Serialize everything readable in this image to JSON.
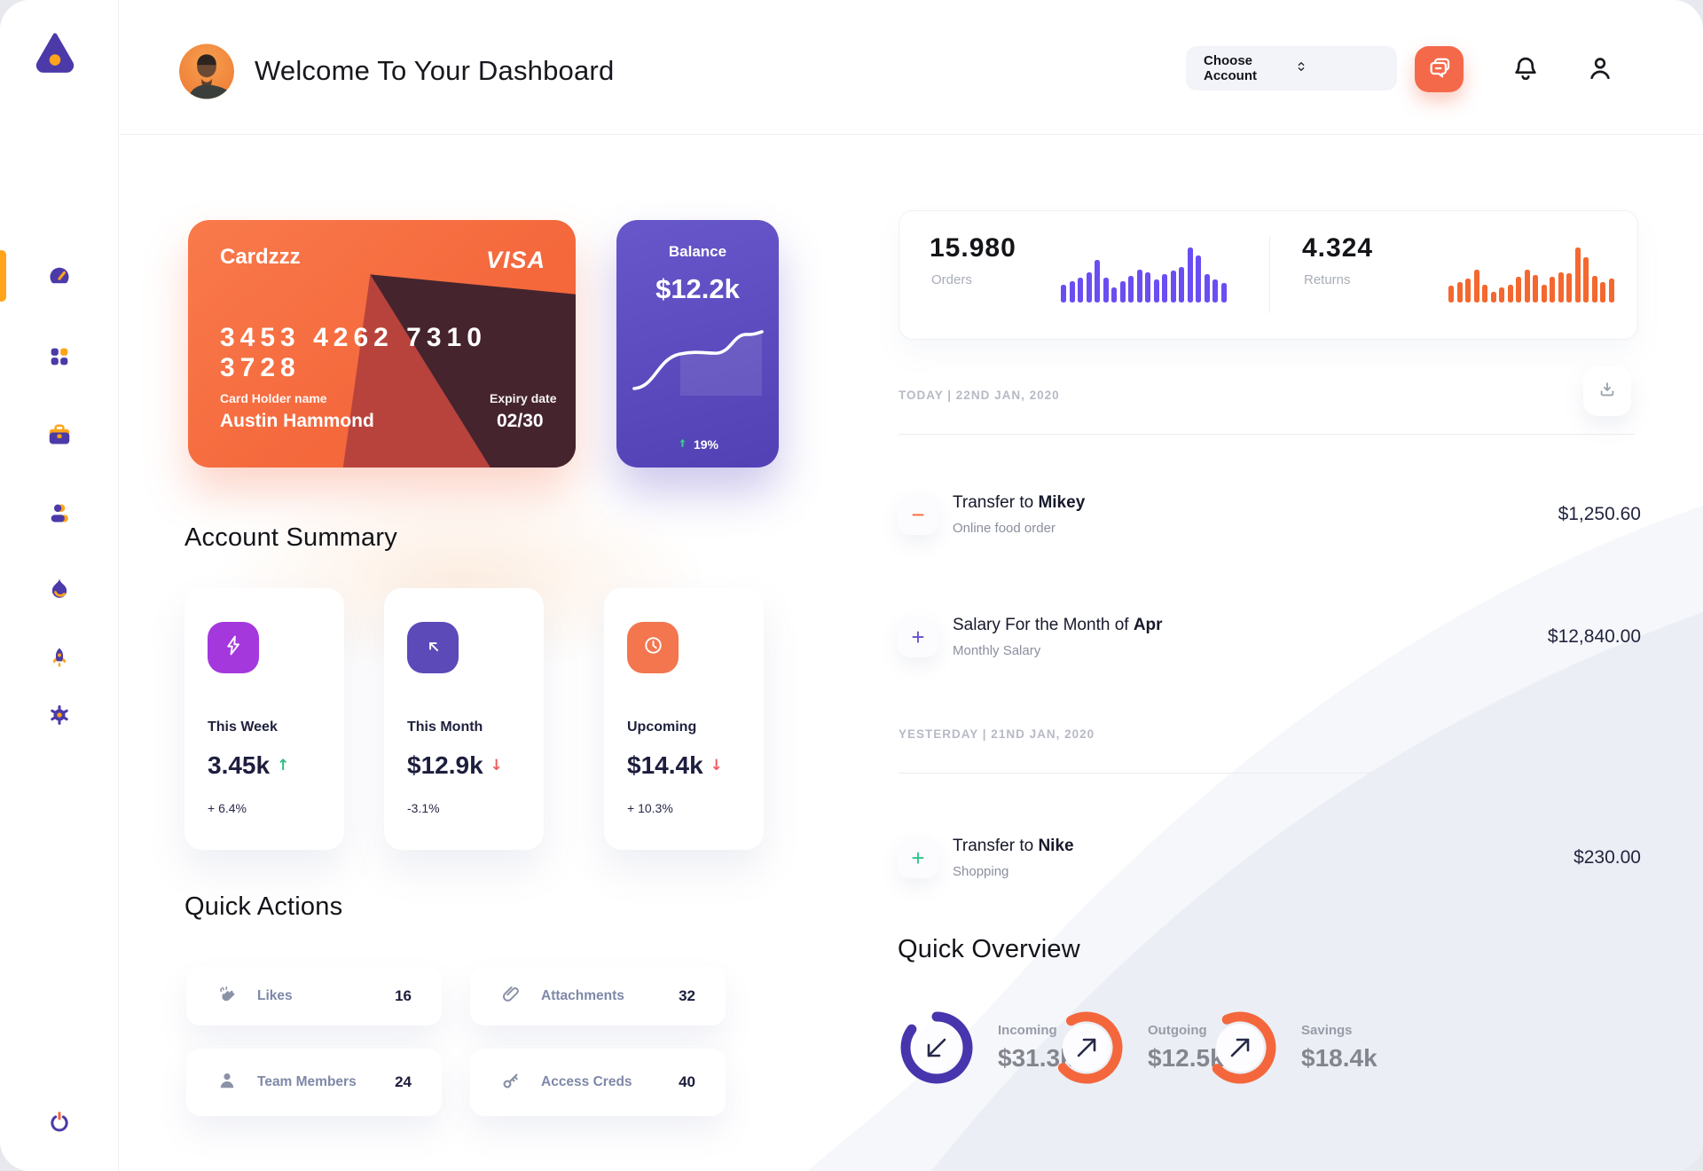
{
  "header": {
    "title": "Welcome To Your Dashboard",
    "account_dropdown": {
      "label": "Choose Account"
    },
    "icons": {
      "chat": "chat-bubbles-icon",
      "notifications": "bell-icon",
      "profile": "user-icon"
    }
  },
  "sidebar": {
    "logo": "triangle-dot-logo",
    "items": [
      {
        "id": "dashboard",
        "icon": "speedometer-icon",
        "active": true
      },
      {
        "id": "apps",
        "icon": "grid-icon",
        "active": false
      },
      {
        "id": "projects",
        "icon": "briefcase-icon",
        "active": false
      },
      {
        "id": "contacts",
        "icon": "user-icon",
        "active": false
      },
      {
        "id": "activity",
        "icon": "flame-icon",
        "active": false
      },
      {
        "id": "boost",
        "icon": "rocket-icon",
        "active": false
      },
      {
        "id": "settings",
        "icon": "gear-icon",
        "active": false
      }
    ],
    "logout_icon": "power-icon"
  },
  "credit_card": {
    "name": "Cardzzz",
    "brand": "VISA",
    "number": "3453 4262 7310 3728",
    "holder_label": "Card Holder name",
    "holder": "Austin Hammond",
    "expiry_label": "Expiry date",
    "expiry": "02/30"
  },
  "balance_card": {
    "label": "Balance",
    "value": "$12.2k",
    "change": "19%",
    "trend": "up",
    "trend_color": "#35d08e"
  },
  "account_summary": {
    "title": "Account Summary",
    "cards": [
      {
        "label": "This Week",
        "value": "3.45k",
        "trend": "↑",
        "trend_color": "#2fbe81",
        "delta": "+ 6.4%",
        "icon": "lightning-icon",
        "icon_bg": "#a438dd"
      },
      {
        "label": "This Month",
        "value": "$12.9k",
        "trend": "↓",
        "trend_color": "#ef5d5d",
        "delta": "-3.1%",
        "icon": "arrow-up-left-icon",
        "icon_bg": "#5b4ab8"
      },
      {
        "label": "Upcoming",
        "value": "$14.4k",
        "trend": "↓",
        "trend_color": "#ef5d5d",
        "delta": "+ 10.3%",
        "icon": "clock-icon",
        "icon_bg": "#f3764f"
      }
    ]
  },
  "quick_actions": {
    "title": "Quick Actions",
    "items": [
      {
        "label": "Likes",
        "count": "16",
        "icon": "clap-icon"
      },
      {
        "label": "Attachments",
        "count": "32",
        "icon": "paperclip-icon"
      },
      {
        "label": "Team Members",
        "count": "24",
        "icon": "member-icon"
      },
      {
        "label": "Access Creds",
        "count": "40",
        "icon": "key-icon"
      }
    ]
  },
  "stats": {
    "orders": {
      "value": "15.980",
      "label": "Orders",
      "color": "#6b4ef2",
      "bars": [
        32,
        38,
        45,
        55,
        78,
        45,
        28,
        38,
        48,
        60,
        55,
        42,
        52,
        58,
        65,
        100,
        85,
        52,
        42,
        35
      ]
    },
    "returns": {
      "value": "4.324",
      "label": "Returns",
      "color": "#f4682f",
      "bars": [
        30,
        37,
        43,
        60,
        33,
        20,
        28,
        33,
        47,
        60,
        50,
        33,
        47,
        55,
        53,
        100,
        83,
        48,
        37,
        43
      ]
    }
  },
  "transactions": {
    "download_icon": "download-icon",
    "groups": [
      {
        "date": "TODAY | 22ND JAN, 2020",
        "rows": [
          {
            "title_prefix": "Transfer to ",
            "title_bold": "Mikey",
            "subtitle": "Online food order",
            "amount": "$1,250.60",
            "symbol": "−",
            "symbol_color": "#f4683c"
          },
          {
            "title_prefix": "Salary For the Month of ",
            "title_bold": "Apr",
            "subtitle": "Monthly Salary",
            "amount": "$12,840.00",
            "symbol": "+",
            "symbol_color": "#6552cd"
          }
        ]
      },
      {
        "date": "YESTERDAY | 21ND JAN, 2020",
        "rows": [
          {
            "title_prefix": "Transfer to ",
            "title_bold": "Nike",
            "subtitle": "Shopping",
            "amount": "$230.00",
            "symbol": "+",
            "symbol_color": "#2ec58a"
          }
        ]
      }
    ]
  },
  "quick_overview": {
    "title": "Quick Overview",
    "items": [
      {
        "label": "Incoming",
        "value": "$31.3k",
        "color": "#4635ac",
        "progress": 0.85,
        "start_angle": -90,
        "arrow": "down-left"
      },
      {
        "label": "Outgoing",
        "value": "$12.5k",
        "color": "#f4673d",
        "progress": 0.72,
        "start_angle": -120,
        "arrow": "up-right"
      },
      {
        "label": "Savings",
        "value": "$18.4k",
        "color": "#f4673d",
        "progress": 0.7,
        "start_angle": -115,
        "arrow": "up-right"
      }
    ]
  },
  "colors": {
    "accent_orange": "#f4683c",
    "accent_purple": "#4b3aa7",
    "accent_yellow": "#ffa41b"
  }
}
